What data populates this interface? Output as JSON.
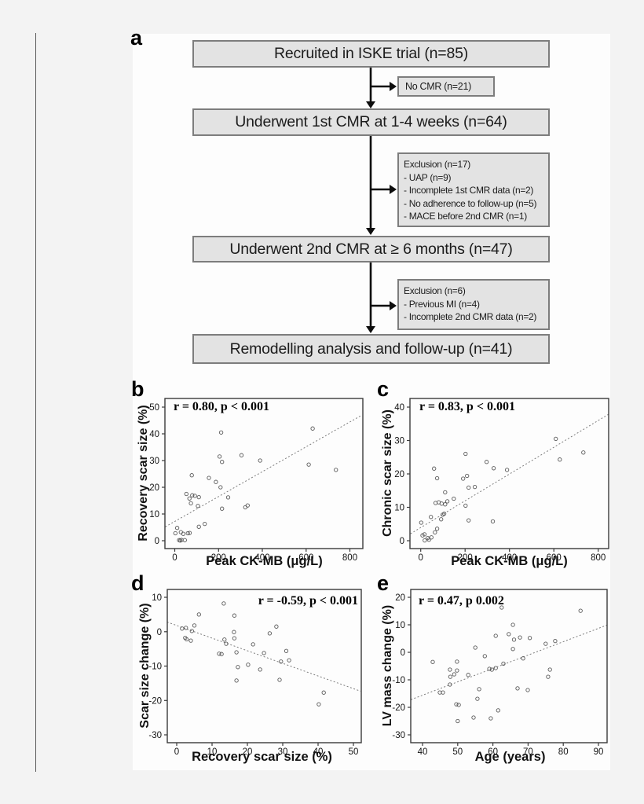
{
  "page": {
    "panel_labels": {
      "a": "a",
      "b": "b",
      "c": "c",
      "d": "d",
      "e": "e"
    }
  },
  "flowchart": {
    "main_boxes": [
      "Recruited in ISKE trial (n=85)",
      "Underwent 1st CMR at 1-4 weeks (n=64)",
      "Underwent 2nd CMR at ≥ 6 months (n=47)",
      "Remodelling analysis and follow-up (n=41)"
    ],
    "side_boxes": [
      {
        "lines": [
          "No CMR (n=21)"
        ]
      },
      {
        "lines": [
          "Exclusion (n=17)",
          "- UAP (n=9)",
          "- Incomplete 1st CMR data (n=2)",
          "- No adherence to follow-up (n=5)",
          "- MACE before 2nd CMR (n=1)"
        ]
      },
      {
        "lines": [
          "Exclusion (n=6)",
          "- Previous MI (n=4)",
          "- Incomplete 2nd CMR data (n=2)"
        ]
      }
    ]
  },
  "chart_data": [
    {
      "id": "b",
      "type": "scatter",
      "stats": "r = 0.80, p < 0.001",
      "xlabel": "Peak CK-MB (μg/L)",
      "ylabel": "Recovery scar size (%)",
      "xticks": [
        0,
        200,
        400,
        600,
        800
      ],
      "yticks": [
        0,
        10,
        20,
        30,
        40,
        50
      ],
      "xlim": [
        -45,
        860
      ],
      "ylim": [
        -3,
        53.5
      ],
      "grid": false,
      "trend_style": "dashed",
      "trend": [
        [
          -43,
          5.2
        ],
        [
          855,
          47
        ]
      ],
      "points": [
        [
          630,
          42
        ],
        [
          212,
          40.5
        ],
        [
          305,
          32
        ],
        [
          205,
          31.5
        ],
        [
          216,
          29.5
        ],
        [
          390,
          30
        ],
        [
          612,
          28.5
        ],
        [
          736,
          26.5
        ],
        [
          78,
          24.5
        ],
        [
          156,
          23.5
        ],
        [
          188,
          22
        ],
        [
          209,
          20
        ],
        [
          53,
          17.5
        ],
        [
          80,
          17
        ],
        [
          92,
          16.8
        ],
        [
          110,
          16.3
        ],
        [
          67,
          15.8
        ],
        [
          74,
          14
        ],
        [
          106,
          13
        ],
        [
          244,
          16.2
        ],
        [
          216,
          12
        ],
        [
          322,
          12.5
        ],
        [
          333,
          13.2
        ],
        [
          137,
          6.3
        ],
        [
          110,
          5.2
        ],
        [
          11,
          4.8
        ],
        [
          3,
          2.8
        ],
        [
          28,
          3.2
        ],
        [
          39,
          2.6
        ],
        [
          60,
          2.8
        ],
        [
          68,
          2.9
        ],
        [
          20,
          0.2
        ],
        [
          25,
          0.1
        ],
        [
          31,
          0.3
        ],
        [
          46,
          0.2
        ]
      ]
    },
    {
      "id": "c",
      "type": "scatter",
      "stats": "r = 0.83, p < 0.001",
      "xlabel": "Peak CK-MB (μg/L)",
      "ylabel": "Chronic scar size (%)",
      "xticks": [
        0,
        200,
        400,
        600,
        800
      ],
      "yticks": [
        0,
        10,
        20,
        30,
        40
      ],
      "xlim": [
        -46,
        846
      ],
      "ylim": [
        -2.4,
        42.6
      ],
      "grid": false,
      "trend_style": "dashed",
      "trend": [
        [
          -46,
          2.1
        ],
        [
          845,
          37.8
        ]
      ],
      "points": [
        [
          609,
          30.5
        ],
        [
          733,
          26.4
        ],
        [
          627,
          24.3
        ],
        [
          202,
          26
        ],
        [
          297,
          23.6
        ],
        [
          329,
          21.7
        ],
        [
          389,
          21.2
        ],
        [
          60,
          21.6
        ],
        [
          74,
          18.7
        ],
        [
          191,
          18.6
        ],
        [
          209,
          19.4
        ],
        [
          216,
          15.9
        ],
        [
          244,
          16.1
        ],
        [
          110,
          14.5
        ],
        [
          149,
          12.6
        ],
        [
          67,
          11.3
        ],
        [
          81,
          11.5
        ],
        [
          94,
          11.1
        ],
        [
          110,
          10.9
        ],
        [
          120,
          11.8
        ],
        [
          202,
          10.5
        ],
        [
          99,
          7.8
        ],
        [
          106,
          8.1
        ],
        [
          92,
          6.4
        ],
        [
          216,
          6.1
        ],
        [
          325,
          5.8
        ],
        [
          2,
          5.4
        ],
        [
          46,
          7.1
        ],
        [
          8,
          1.6
        ],
        [
          17,
          1.9
        ],
        [
          32,
          0.8
        ],
        [
          18,
          0.1
        ],
        [
          37,
          0.3
        ],
        [
          48,
          1
        ],
        [
          64,
          2.5
        ],
        [
          74,
          3.6
        ]
      ]
    },
    {
      "id": "d",
      "type": "scatter",
      "stats": "r = -0.59, p < 0.001",
      "xlabel": "Recovery scar size (%)",
      "ylabel": "Scar size change (%)",
      "xticks": [
        0,
        10,
        20,
        30,
        40,
        50
      ],
      "yticks": [
        10,
        0,
        -10,
        -20,
        -30
      ],
      "xlim": [
        -2.7,
        52.2
      ],
      "ylim": [
        -32.3,
        12.3
      ],
      "grid": false,
      "trend_style": "dashed",
      "trend": [
        [
          -2.7,
          2.8
        ],
        [
          52,
          -17.3
        ]
      ],
      "points": [
        [
          13.3,
          8.2
        ],
        [
          6.3,
          5
        ],
        [
          16.3,
          4.7
        ],
        [
          5,
          1.8
        ],
        [
          28.2,
          1.5
        ],
        [
          1.5,
          0.9
        ],
        [
          2.6,
          1.1
        ],
        [
          4.3,
          0.2
        ],
        [
          16.2,
          -0.1
        ],
        [
          26.3,
          -0.5
        ],
        [
          2.4,
          -1.8
        ],
        [
          2.8,
          -2.2
        ],
        [
          4,
          -2.6
        ],
        [
          16.3,
          -1.9
        ],
        [
          13.5,
          -2.3
        ],
        [
          14,
          -3.5
        ],
        [
          21.6,
          -3.7
        ],
        [
          12,
          -6.4
        ],
        [
          12.7,
          -6.5
        ],
        [
          16.9,
          -6
        ],
        [
          24.7,
          -6.2
        ],
        [
          31,
          -5.6
        ],
        [
          29.5,
          -8.7
        ],
        [
          31.8,
          -8.3
        ],
        [
          17.3,
          -10.3
        ],
        [
          20.2,
          -9.6
        ],
        [
          23.6,
          -11
        ],
        [
          16.9,
          -14.2
        ],
        [
          29.1,
          -14
        ],
        [
          41.6,
          -17.7
        ],
        [
          40.2,
          -21.1
        ]
      ]
    },
    {
      "id": "e",
      "type": "scatter",
      "stats": "r = 0.47, p 0.002",
      "xlabel": "Age (years)",
      "ylabel": "LV mass change (%)",
      "xticks": [
        40,
        50,
        60,
        70,
        80,
        90
      ],
      "yticks": [
        20,
        10,
        0,
        -10,
        -20,
        -30
      ],
      "xlim": [
        36.7,
        92.5
      ],
      "ylim": [
        -32.9,
        22.9
      ],
      "grid": false,
      "trend_style": "dashed",
      "trend": [
        [
          36.7,
          -17.2
        ],
        [
          92.4,
          9.9
        ]
      ],
      "points": [
        [
          62.5,
          16.3
        ],
        [
          84.9,
          15.1
        ],
        [
          65.7,
          10
        ],
        [
          64.5,
          6.6
        ],
        [
          60.8,
          6
        ],
        [
          67.7,
          5.4
        ],
        [
          66,
          4.6
        ],
        [
          70.5,
          5.2
        ],
        [
          75,
          3.1
        ],
        [
          77.7,
          4.1
        ],
        [
          55,
          1.7
        ],
        [
          65.7,
          1.2
        ],
        [
          57.7,
          -1.4
        ],
        [
          68.6,
          -2.2
        ],
        [
          49.8,
          -3.4
        ],
        [
          42.9,
          -3.5
        ],
        [
          63,
          -4.1
        ],
        [
          47.8,
          -6.3
        ],
        [
          49.8,
          -6.6
        ],
        [
          59,
          -6
        ],
        [
          59.7,
          -6.3
        ],
        [
          60.8,
          -5.7
        ],
        [
          47.9,
          -8.9
        ],
        [
          49,
          -8
        ],
        [
          53,
          -8.2
        ],
        [
          76.2,
          -6.3
        ],
        [
          75.7,
          -8.9
        ],
        [
          47.8,
          -11.7
        ],
        [
          56.1,
          -13.4
        ],
        [
          67,
          -13.1
        ],
        [
          69.9,
          -13.7
        ],
        [
          44.9,
          -14.6
        ],
        [
          45.8,
          -14.6
        ],
        [
          55.6,
          -16.9
        ],
        [
          49.6,
          -18.9
        ],
        [
          50.3,
          -19.1
        ],
        [
          61.5,
          -21.1
        ],
        [
          50,
          -25
        ],
        [
          54.5,
          -23.7
        ],
        [
          59.4,
          -24
        ]
      ]
    }
  ],
  "colors": {
    "page_bg": "#f3f3f3",
    "figure_bg": "#fdfdfd",
    "box_fill": "#e3e3e3",
    "box_border": "#7d7d7d",
    "arrow": "#0d0d0d",
    "plot_frame": "#3a3a3a",
    "point_stroke": "#5a5a5a",
    "trend_line": "#7d7d7d"
  }
}
